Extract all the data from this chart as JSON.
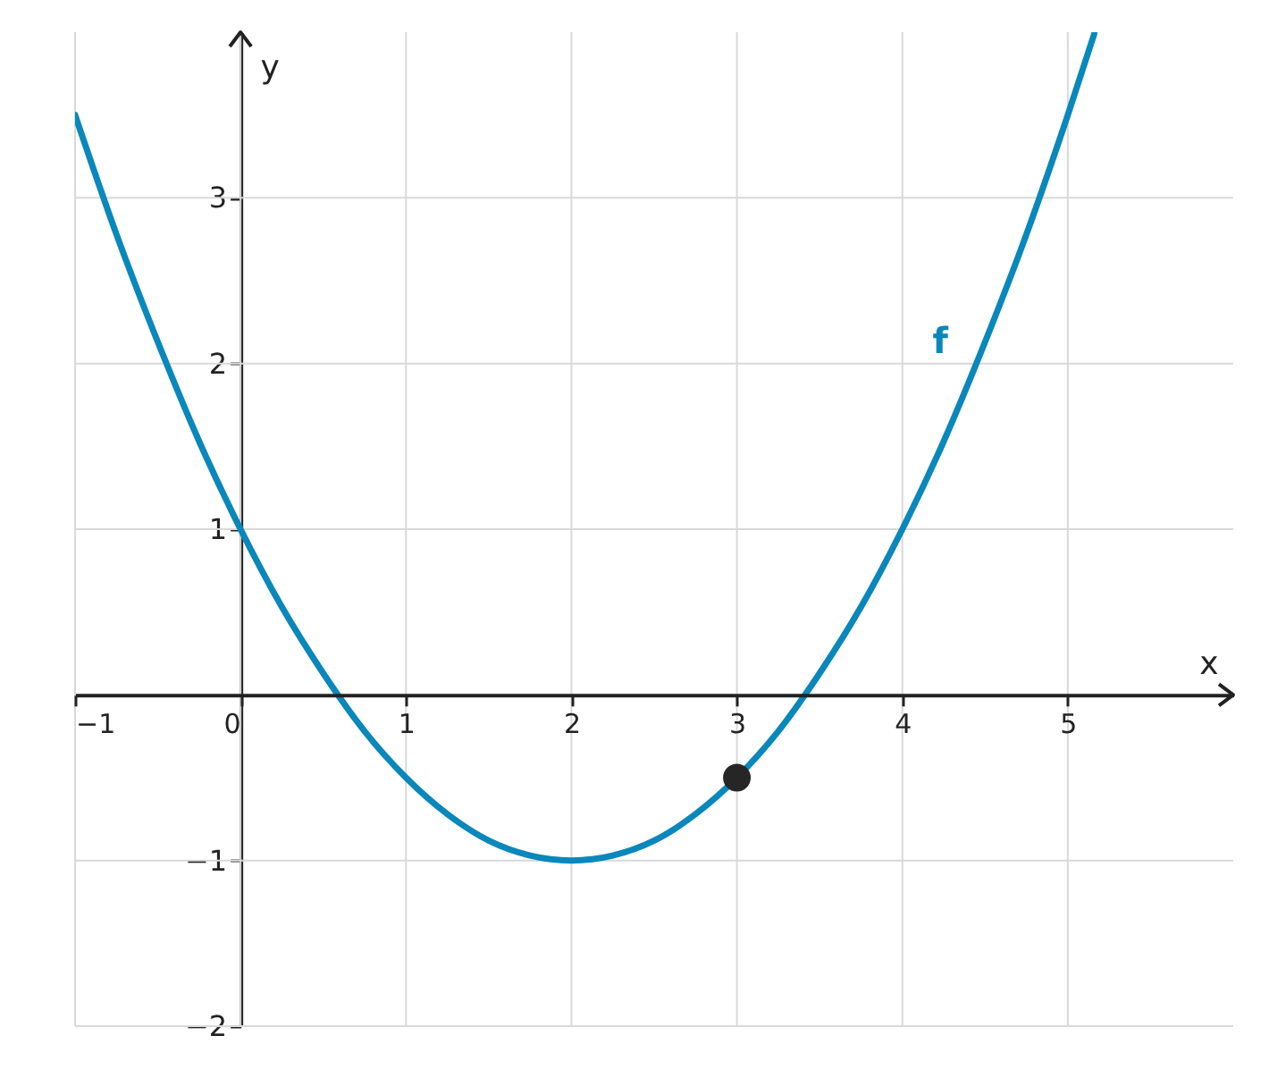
{
  "chart_data": {
    "type": "line",
    "xlabel": "x",
    "ylabel": "y",
    "xlim": [
      -1,
      6
    ],
    "ylim": [
      -2,
      4
    ],
    "xticks": [
      {
        "value": -1,
        "label": "−1"
      },
      0,
      1,
      2,
      3,
      4,
      5
    ],
    "yticks": [
      {
        "value": -2,
        "label": "−2"
      },
      {
        "value": -1,
        "label": "−1"
      },
      1,
      2,
      3
    ],
    "grid": true,
    "series": [
      {
        "name": "f",
        "color": "#0a87bb",
        "marker": "none",
        "x": [
          -1,
          -0.75,
          -0.5,
          -0.25,
          0,
          0.25,
          0.5,
          0.75,
          1,
          1.25,
          1.5,
          1.75,
          2,
          2.25,
          2.5,
          2.75,
          3,
          3.25,
          3.5,
          3.75,
          4,
          4.25,
          4.5,
          4.75,
          5,
          5.16
        ],
        "values": [
          3.5,
          2.78,
          2.13,
          1.53,
          1,
          0.53,
          0.13,
          -0.22,
          -0.5,
          -0.72,
          -0.88,
          -0.97,
          -1,
          -0.97,
          -0.88,
          -0.72,
          -0.5,
          -0.22,
          0.13,
          0.53,
          1,
          1.53,
          2.13,
          2.78,
          3.5,
          3.99
        ]
      },
      {
        "type": "scatter",
        "color": "#262626",
        "marker": "circle",
        "x": [
          3
        ],
        "values": [
          -0.5
        ]
      }
    ]
  }
}
